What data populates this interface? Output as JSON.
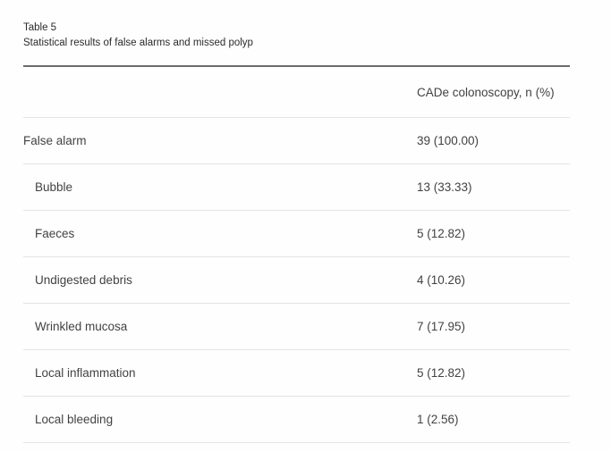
{
  "table": {
    "label": "Table 5",
    "caption": "Statistical results of false alarms and missed polyp",
    "column_header": "CADe colonoscopy, n (%)",
    "rows": [
      {
        "label": "False alarm",
        "value": "39 (100.00)",
        "indent": false
      },
      {
        "label": "Bubble",
        "value": "13 (33.33)",
        "indent": true
      },
      {
        "label": "Faeces",
        "value": "5 (12.82)",
        "indent": true
      },
      {
        "label": "Undigested debris",
        "value": "4 (10.26)",
        "indent": true
      },
      {
        "label": "Wrinkled mucosa",
        "value": "7 (17.95)",
        "indent": true
      },
      {
        "label": "Local inflammation",
        "value": "5 (12.82)",
        "indent": true
      },
      {
        "label": "Local bleeding",
        "value": "1 (2.56)",
        "indent": true
      }
    ],
    "colors": {
      "text": "#424242",
      "caption_text": "#2a2a2a",
      "rule_dark": "#6b6b6b",
      "rule_light": "#e4e4e4",
      "background": "#fefefe"
    }
  }
}
